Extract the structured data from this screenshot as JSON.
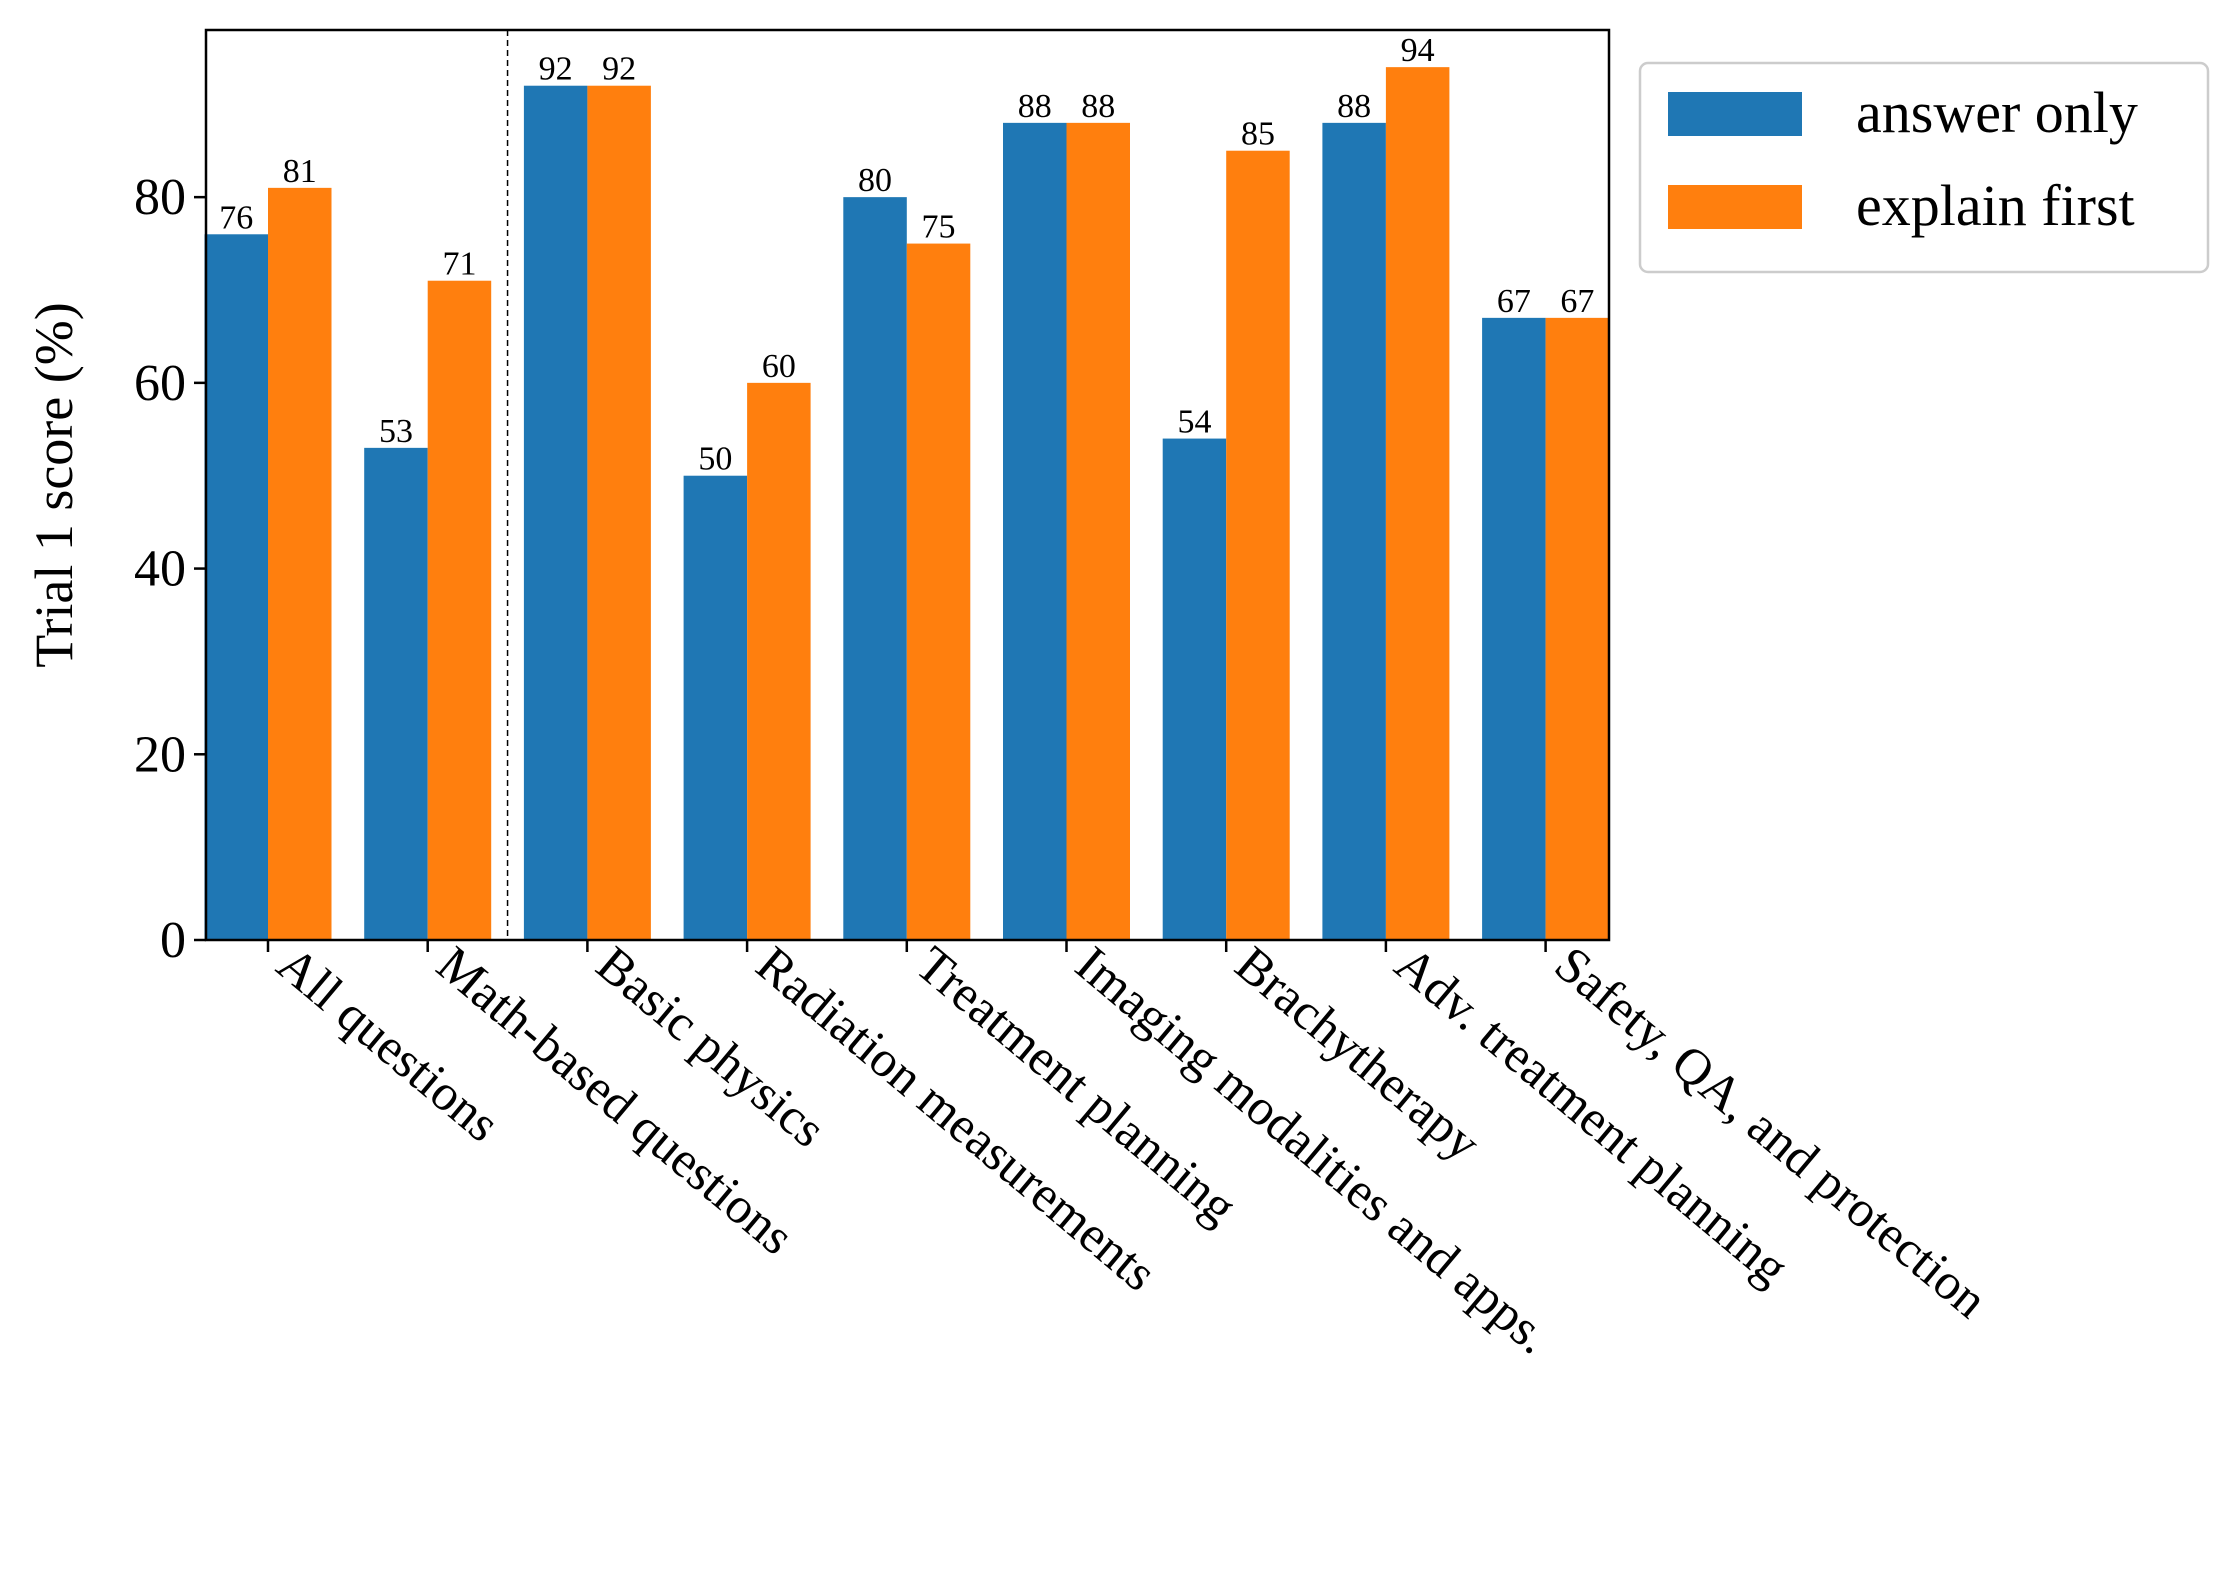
{
  "chart_data": {
    "type": "bar",
    "title": "",
    "xlabel": "",
    "ylabel": "Trial 1 score (%)",
    "ylim": [
      0,
      98
    ],
    "yticks": [
      0,
      20,
      40,
      60,
      80
    ],
    "grid": false,
    "legend_position": "outside-top-right",
    "separator_after_category_index": 1,
    "categories": [
      "All questions",
      "Math-based questions",
      "Basic physics",
      "Radiation measurements",
      "Treatment planning",
      "Imaging modalities and apps.",
      "Brachytherapy",
      "Adv. treatment planning",
      "Safety, QA, and protection"
    ],
    "series": [
      {
        "name": "answer only",
        "color": "#1f77b4",
        "values": [
          76,
          53,
          92,
          50,
          80,
          88,
          54,
          88,
          67
        ],
        "labels": [
          "76",
          "53",
          "92",
          "50",
          "80",
          "88",
          "54",
          "88",
          "67"
        ]
      },
      {
        "name": "explain first",
        "color": "#ff7f0e",
        "values": [
          81,
          71,
          92,
          60,
          75,
          88,
          85,
          94,
          67
        ],
        "labels": [
          "81",
          "71",
          "92",
          "60",
          "75",
          "88",
          "85",
          "94",
          "67"
        ]
      }
    ]
  }
}
